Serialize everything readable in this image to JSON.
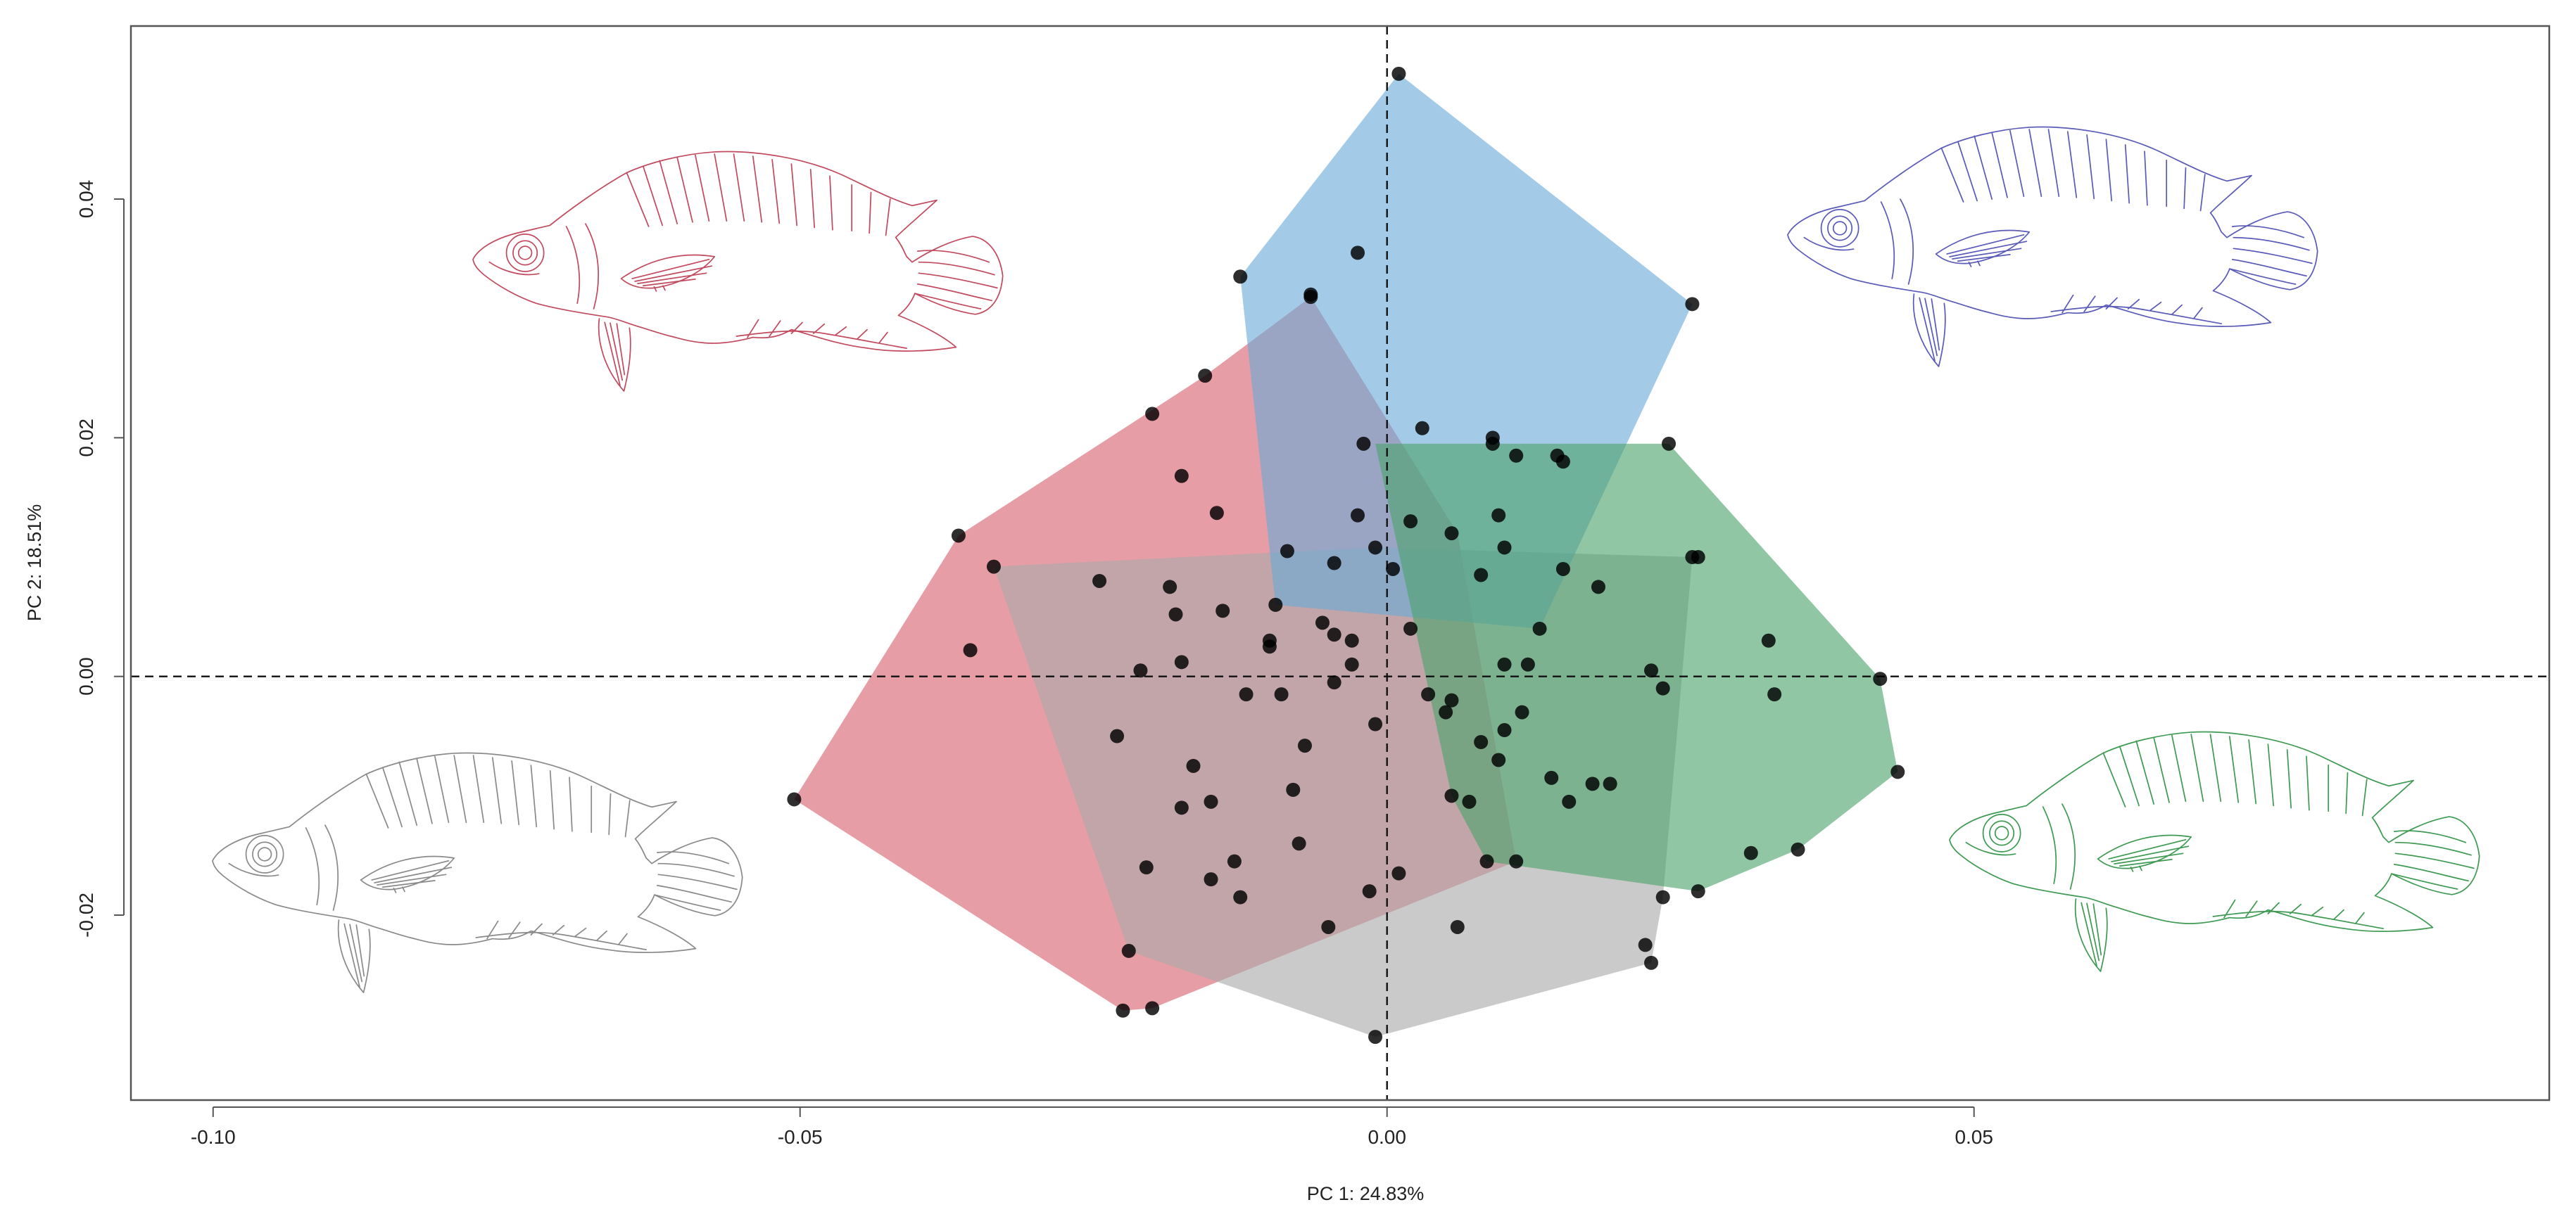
{
  "chart_data": {
    "type": "scatter",
    "title": "",
    "xlabel": "PC 1: 24.83%",
    "ylabel": "PC 2: 18.51%",
    "xlim": [
      -0.107,
      0.099
    ],
    "ylim": [
      -0.0355,
      0.0545
    ],
    "x_ticks": [
      {
        "value": -0.1,
        "label": "-0.10"
      },
      {
        "value": -0.05,
        "label": "-0.05"
      },
      {
        "value": 0.0,
        "label": "0.00"
      },
      {
        "value": 0.05,
        "label": "0.05"
      }
    ],
    "y_ticks": [
      {
        "value": -0.02,
        "label": "-0.02"
      },
      {
        "value": 0.0,
        "label": "0.00"
      },
      {
        "value": 0.02,
        "label": "0.02"
      },
      {
        "value": 0.04,
        "label": "0.04"
      }
    ],
    "reference_lines": {
      "x": 0,
      "y": 0,
      "style": "dashed"
    },
    "grid": false,
    "series": [
      {
        "color": "#d9616f",
        "hull": [
          [
            -0.0505,
            -0.0103
          ],
          [
            -0.0365,
            0.0118
          ],
          [
            -0.0155,
            0.0252
          ],
          [
            -0.0065,
            0.0318
          ],
          [
            0.006,
            0.012
          ],
          [
            0.011,
            -0.0155
          ],
          [
            -0.02,
            -0.0278
          ],
          [
            -0.0225,
            -0.028
          ]
        ],
        "points": [
          [
            -0.0505,
            -0.0103
          ],
          [
            -0.0365,
            0.0118
          ],
          [
            -0.0355,
            0.0022
          ],
          [
            -0.0155,
            0.0252
          ],
          [
            -0.02,
            0.022
          ],
          [
            -0.0175,
            0.0168
          ],
          [
            -0.0145,
            0.0137
          ],
          [
            -0.0065,
            0.0318
          ],
          [
            -0.0225,
            -0.028
          ],
          [
            -0.02,
            -0.0278
          ],
          [
            -0.022,
            -0.023
          ],
          [
            -0.021,
            0.0005
          ],
          [
            -0.023,
            -0.005
          ],
          [
            -0.0205,
            -0.016
          ],
          [
            -0.0165,
            -0.0075
          ],
          [
            -0.015,
            -0.0105
          ],
          [
            -0.012,
            -0.0015
          ],
          [
            -0.01,
            0.003
          ],
          [
            -0.007,
            -0.0058
          ],
          [
            -0.008,
            -0.0095
          ],
          [
            -0.0055,
            0.0045
          ],
          [
            -0.0045,
            -0.0005
          ],
          [
            -0.003,
            0.003
          ],
          [
            -0.001,
            -0.004
          ],
          [
            -0.015,
            -0.017
          ],
          [
            -0.013,
            -0.0155
          ],
          [
            -0.0175,
            -0.011
          ],
          [
            -0.0125,
            -0.0185
          ],
          [
            0.001,
            -0.0165
          ],
          [
            0.006,
            -0.021
          ],
          [
            0.011,
            -0.0155
          ]
        ]
      },
      {
        "color": "#aaaaaa",
        "hull": [
          [
            -0.0335,
            0.0092
          ],
          [
            -0.001,
            0.0108
          ],
          [
            0.026,
            0.01
          ],
          [
            0.0235,
            -0.0185
          ],
          [
            0.0225,
            -0.024
          ],
          [
            -0.001,
            -0.0302
          ],
          [
            -0.022,
            -0.023
          ]
        ],
        "points": [
          [
            -0.0335,
            0.0092
          ],
          [
            -0.001,
            0.0108
          ],
          [
            0.026,
            0.01
          ],
          [
            0.0235,
            -0.0185
          ],
          [
            0.0225,
            -0.024
          ],
          [
            0.022,
            -0.0225
          ],
          [
            -0.001,
            -0.0302
          ],
          [
            -0.0245,
            0.008
          ],
          [
            -0.0185,
            0.0075
          ],
          [
            -0.018,
            0.0052
          ],
          [
            -0.0175,
            0.0012
          ],
          [
            -0.014,
            0.0055
          ],
          [
            -0.01,
            0.0025
          ],
          [
            -0.009,
            -0.0015
          ],
          [
            -0.0045,
            0.0035
          ],
          [
            -0.003,
            0.001
          ],
          [
            0.002,
            0.004
          ],
          [
            0.0035,
            -0.0015
          ],
          [
            0.0055,
            -0.002
          ],
          [
            0.008,
            -0.0055
          ],
          [
            0.01,
            0.001
          ],
          [
            0.0115,
            -0.003
          ],
          [
            0.015,
            0.009
          ],
          [
            0.018,
            0.0075
          ],
          [
            0.0225,
            0.0005
          ],
          [
            0.0235,
            -0.001
          ],
          [
            0.0175,
            -0.009
          ],
          [
            0.0155,
            -0.0105
          ],
          [
            -0.005,
            -0.021
          ],
          [
            -0.0015,
            -0.018
          ],
          [
            -0.0075,
            -0.014
          ]
        ]
      },
      {
        "color": "#6aa9d6",
        "hull": [
          [
            0.001,
            0.0505
          ],
          [
            0.026,
            0.0312
          ],
          [
            0.013,
            0.004
          ],
          [
            -0.0095,
            0.006
          ],
          [
            -0.0125,
            0.0335
          ]
        ],
        "points": [
          [
            0.001,
            0.0505
          ],
          [
            0.026,
            0.0312
          ],
          [
            -0.0125,
            0.0335
          ],
          [
            -0.0065,
            0.032
          ],
          [
            -0.0025,
            0.0355
          ],
          [
            0.003,
            0.0208
          ],
          [
            -0.002,
            0.0195
          ],
          [
            -0.0025,
            0.0135
          ],
          [
            0.002,
            0.013
          ],
          [
            0.0055,
            0.012
          ],
          [
            -0.0095,
            0.006
          ],
          [
            -0.0085,
            0.0105
          ],
          [
            0.009,
            0.0195
          ],
          [
            0.011,
            0.0185
          ],
          [
            0.0145,
            0.0185
          ],
          [
            0.0095,
            0.0135
          ],
          [
            0.01,
            0.0108
          ],
          [
            0.008,
            0.0085
          ],
          [
            0.013,
            0.004
          ],
          [
            -0.0045,
            0.0095
          ],
          [
            0.0005,
            0.009
          ]
        ]
      },
      {
        "color": "#4ea36d",
        "hull": [
          [
            -0.001,
            0.0195
          ],
          [
            0.024,
            0.0195
          ],
          [
            0.042,
            -0.0002
          ],
          [
            0.0435,
            -0.008
          ],
          [
            0.035,
            -0.0145
          ],
          [
            0.0265,
            -0.018
          ],
          [
            0.0085,
            -0.0155
          ],
          [
            0.0055,
            -0.01
          ]
        ],
        "points": [
          [
            0.024,
            0.0195
          ],
          [
            0.042,
            -0.0002
          ],
          [
            0.0435,
            -0.008
          ],
          [
            0.035,
            -0.0145
          ],
          [
            0.031,
            -0.0148
          ],
          [
            0.0265,
            -0.018
          ],
          [
            0.0265,
            0.01
          ],
          [
            0.0325,
            0.003
          ],
          [
            0.033,
            -0.0015
          ],
          [
            0.009,
            0.02
          ],
          [
            0.015,
            0.018
          ],
          [
            0.012,
            0.001
          ],
          [
            0.0095,
            -0.007
          ],
          [
            0.014,
            -0.0085
          ],
          [
            0.007,
            -0.0105
          ],
          [
            0.0055,
            -0.01
          ],
          [
            0.0085,
            -0.0155
          ],
          [
            0.01,
            -0.0045
          ],
          [
            0.005,
            -0.003
          ],
          [
            0.019,
            -0.009
          ]
        ]
      }
    ],
    "illustration_colors": {
      "top_left": "#c24a5e",
      "top_right": "#5a5ab8",
      "bottom_left": "#8a8a8a",
      "bottom_right": "#3e9a52"
    }
  }
}
